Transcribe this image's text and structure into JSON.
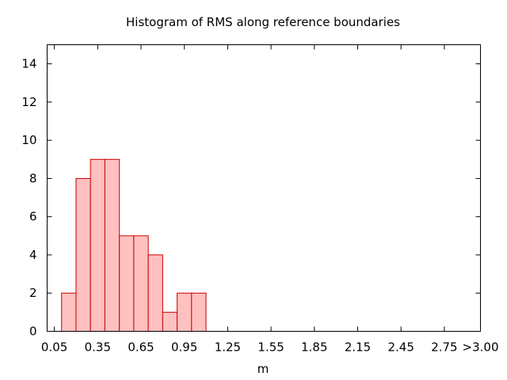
{
  "chart_data": {
    "type": "bar",
    "title": "Histogram of RMS along reference boundaries",
    "xlabel": "m",
    "ylabel": "",
    "ylim": [
      0,
      15
    ],
    "xlim": [
      0.0,
      3.0
    ],
    "bin_width": 0.1,
    "bins": [
      {
        "x_start": 0.1,
        "x_end": 0.2,
        "value": 2
      },
      {
        "x_start": 0.2,
        "x_end": 0.3,
        "value": 8
      },
      {
        "x_start": 0.3,
        "x_end": 0.4,
        "value": 9
      },
      {
        "x_start": 0.4,
        "x_end": 0.5,
        "value": 9
      },
      {
        "x_start": 0.5,
        "x_end": 0.6,
        "value": 5
      },
      {
        "x_start": 0.6,
        "x_end": 0.7,
        "value": 5
      },
      {
        "x_start": 0.7,
        "x_end": 0.8,
        "value": 4
      },
      {
        "x_start": 0.8,
        "x_end": 0.9,
        "value": 1
      },
      {
        "x_start": 0.9,
        "x_end": 1.0,
        "value": 2
      },
      {
        "x_start": 1.0,
        "x_end": 1.1,
        "value": 2
      }
    ],
    "x_ticks": [
      {
        "value": 0.05,
        "label": "0.05"
      },
      {
        "value": 0.35,
        "label": "0.35"
      },
      {
        "value": 0.65,
        "label": "0.65"
      },
      {
        "value": 0.95,
        "label": "0.95"
      },
      {
        "value": 1.25,
        "label": "1.25"
      },
      {
        "value": 1.55,
        "label": "1.55"
      },
      {
        "value": 1.85,
        "label": "1.85"
      },
      {
        "value": 2.15,
        "label": "2.15"
      },
      {
        "value": 2.45,
        "label": "2.45"
      },
      {
        "value": 2.75,
        "label": "2.75"
      },
      {
        "value": 3.0,
        "label": ">3.00"
      }
    ],
    "y_ticks": [
      0,
      2,
      4,
      6,
      8,
      10,
      12,
      14
    ],
    "grid": false,
    "bar_fill": "#ffc0c0",
    "bar_stroke": "#cc0000"
  }
}
